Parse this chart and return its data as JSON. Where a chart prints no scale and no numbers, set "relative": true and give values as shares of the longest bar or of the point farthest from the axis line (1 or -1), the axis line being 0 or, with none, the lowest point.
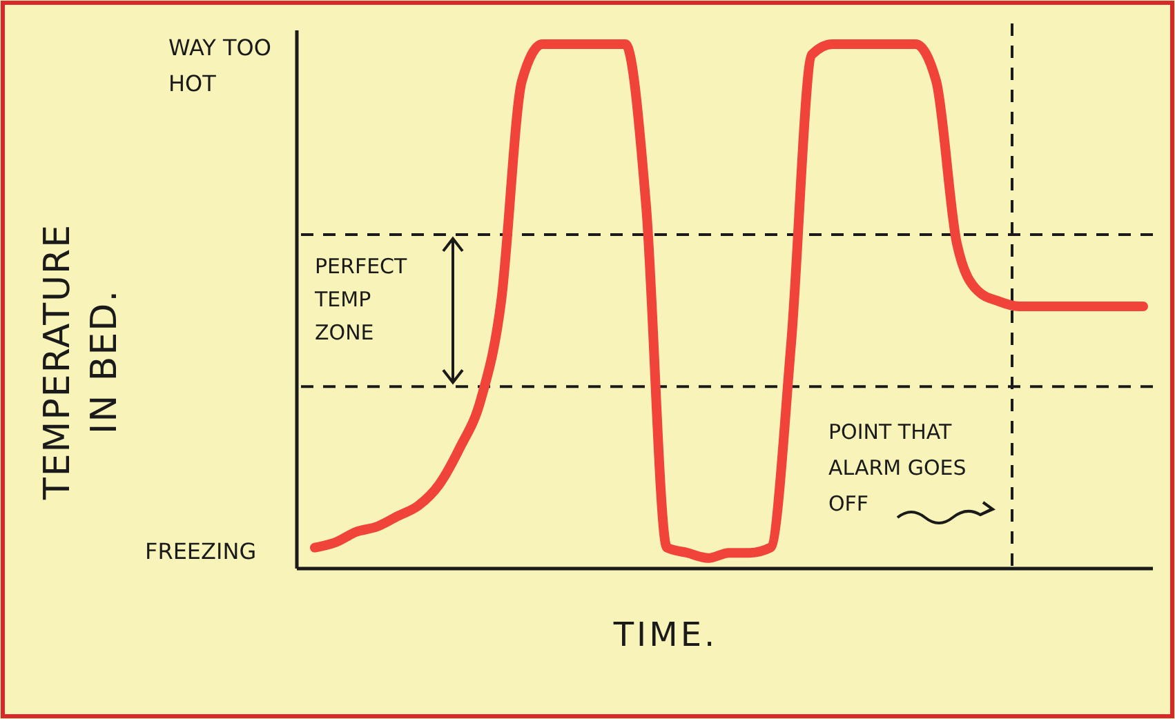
{
  "chart_data": {
    "type": "line",
    "relative": true,
    "xlabel": "TIME.",
    "ylabel": "TEMPERATURE IN BED.",
    "categories": [
      null,
      null,
      null,
      null,
      null,
      null,
      null,
      null,
      null,
      null,
      null,
      null,
      null,
      null,
      null,
      null,
      null,
      null,
      null,
      null,
      null,
      null,
      null,
      null,
      null,
      null,
      null,
      null,
      null,
      null,
      null,
      null,
      null,
      null,
      null,
      null,
      null,
      null,
      null,
      null,
      null
    ],
    "series": [
      {
        "color": "#f0433a",
        "values": [
          0.04,
          0.05,
          0.07,
          0.08,
          0.1,
          0.12,
          0.16,
          0.23,
          0.32,
          0.51,
          0.93,
          1,
          1,
          1,
          1,
          1,
          0.69,
          0.04,
          0.03,
          0.02,
          0.03,
          0.03,
          0.04,
          0.43,
          0.98,
          1,
          1,
          1,
          1,
          1,
          0.93,
          0.62,
          0.53,
          0.51,
          0.5,
          0.5,
          0.5,
          0.5,
          0.5,
          0.5,
          0.5
        ]
      }
    ],
    "ref_lines": [
      {
        "axis": "y",
        "value": 0.347,
        "line_style": "dashed"
      },
      {
        "axis": "y",
        "value": 0.637,
        "line_style": "dashed"
      }
    ],
    "annotations": [
      "FREEZING",
      "WAY TOO HOT",
      "PERFECT TEMP ZONE",
      "POINT THAT ALARM GOES OFF"
    ],
    "grid": false,
    "marker": "none",
    "line_style": "solid"
  }
}
